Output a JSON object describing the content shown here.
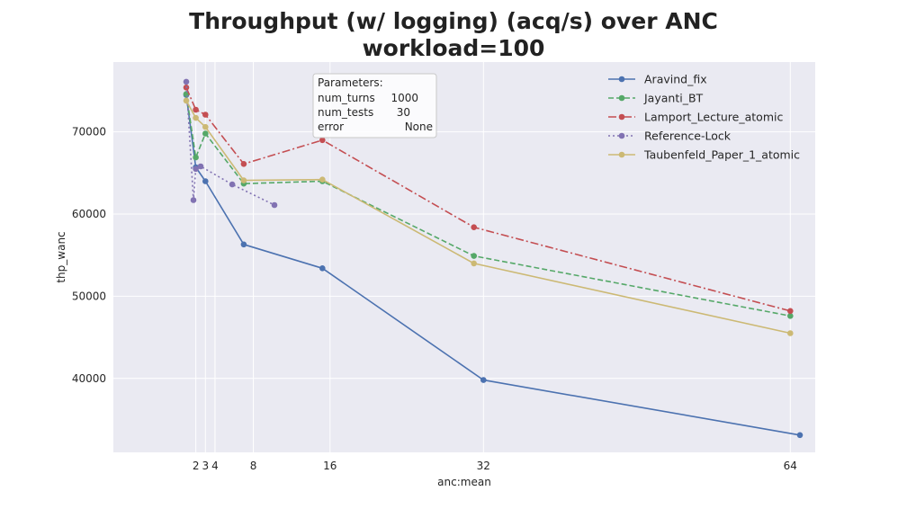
{
  "chart_data": {
    "type": "line",
    "title": "Throughput (w/ logging) (acq/s) over ANC",
    "subtitle": "workload=100",
    "xlabel": "anc:mean",
    "ylabel": "thp_wanc",
    "xlim": [
      -6.6,
      66.6
    ],
    "ylim": [
      31000,
      78500
    ],
    "xticks": [
      2,
      3,
      4,
      8,
      16,
      32,
      64
    ],
    "yticks": [
      40000,
      50000,
      60000,
      70000
    ],
    "grid": true,
    "legend_position": "top-right",
    "parameters": {
      "title": "Parameters:",
      "rows": [
        {
          "key": "num_turns",
          "value": "1000"
        },
        {
          "key": "num_tests",
          "value": "30"
        },
        {
          "key": "error",
          "value": "None"
        }
      ]
    },
    "series": [
      {
        "name": "Aravind_fix",
        "color": "#4c72b0",
        "dash": "solid",
        "points": [
          [
            1.0,
            74500
          ],
          [
            2.0,
            65700
          ],
          [
            3.0,
            64000
          ],
          [
            7.0,
            56300
          ],
          [
            15.2,
            53400
          ],
          [
            32.0,
            39800
          ],
          [
            65.0,
            33100
          ]
        ]
      },
      {
        "name": "Jayanti_BT",
        "color": "#55a868",
        "dash": "dashed",
        "points": [
          [
            1.0,
            74600
          ],
          [
            2.0,
            66900
          ],
          [
            3.0,
            69800
          ],
          [
            7.0,
            63700
          ],
          [
            15.2,
            64000
          ],
          [
            31.0,
            54900
          ],
          [
            64.0,
            47600
          ]
        ]
      },
      {
        "name": "Lamport_Lecture_atomic",
        "color": "#c44e52",
        "dash": "dashdot",
        "points": [
          [
            1.0,
            75400
          ],
          [
            2.0,
            72700
          ],
          [
            3.0,
            72100
          ],
          [
            7.0,
            66100
          ],
          [
            15.2,
            69000
          ],
          [
            31.0,
            58400
          ],
          [
            64.0,
            48200
          ]
        ]
      },
      {
        "name": "Reference-Lock",
        "color": "#8172b2",
        "dash": "dotted",
        "points": [
          [
            1.0,
            76100
          ],
          [
            1.75,
            61700
          ],
          [
            2.0,
            65500
          ],
          [
            2.5,
            65800
          ],
          [
            5.8,
            63600
          ],
          [
            10.2,
            61100
          ]
        ]
      },
      {
        "name": "Taubenfeld_Paper_1_atomic",
        "color": "#ccb974",
        "dash": "solid",
        "points": [
          [
            1.0,
            73800
          ],
          [
            2.0,
            71700
          ],
          [
            3.0,
            70600
          ],
          [
            7.0,
            64100
          ],
          [
            15.2,
            64200
          ],
          [
            31.0,
            54000
          ],
          [
            64.0,
            45500
          ]
        ]
      }
    ]
  }
}
